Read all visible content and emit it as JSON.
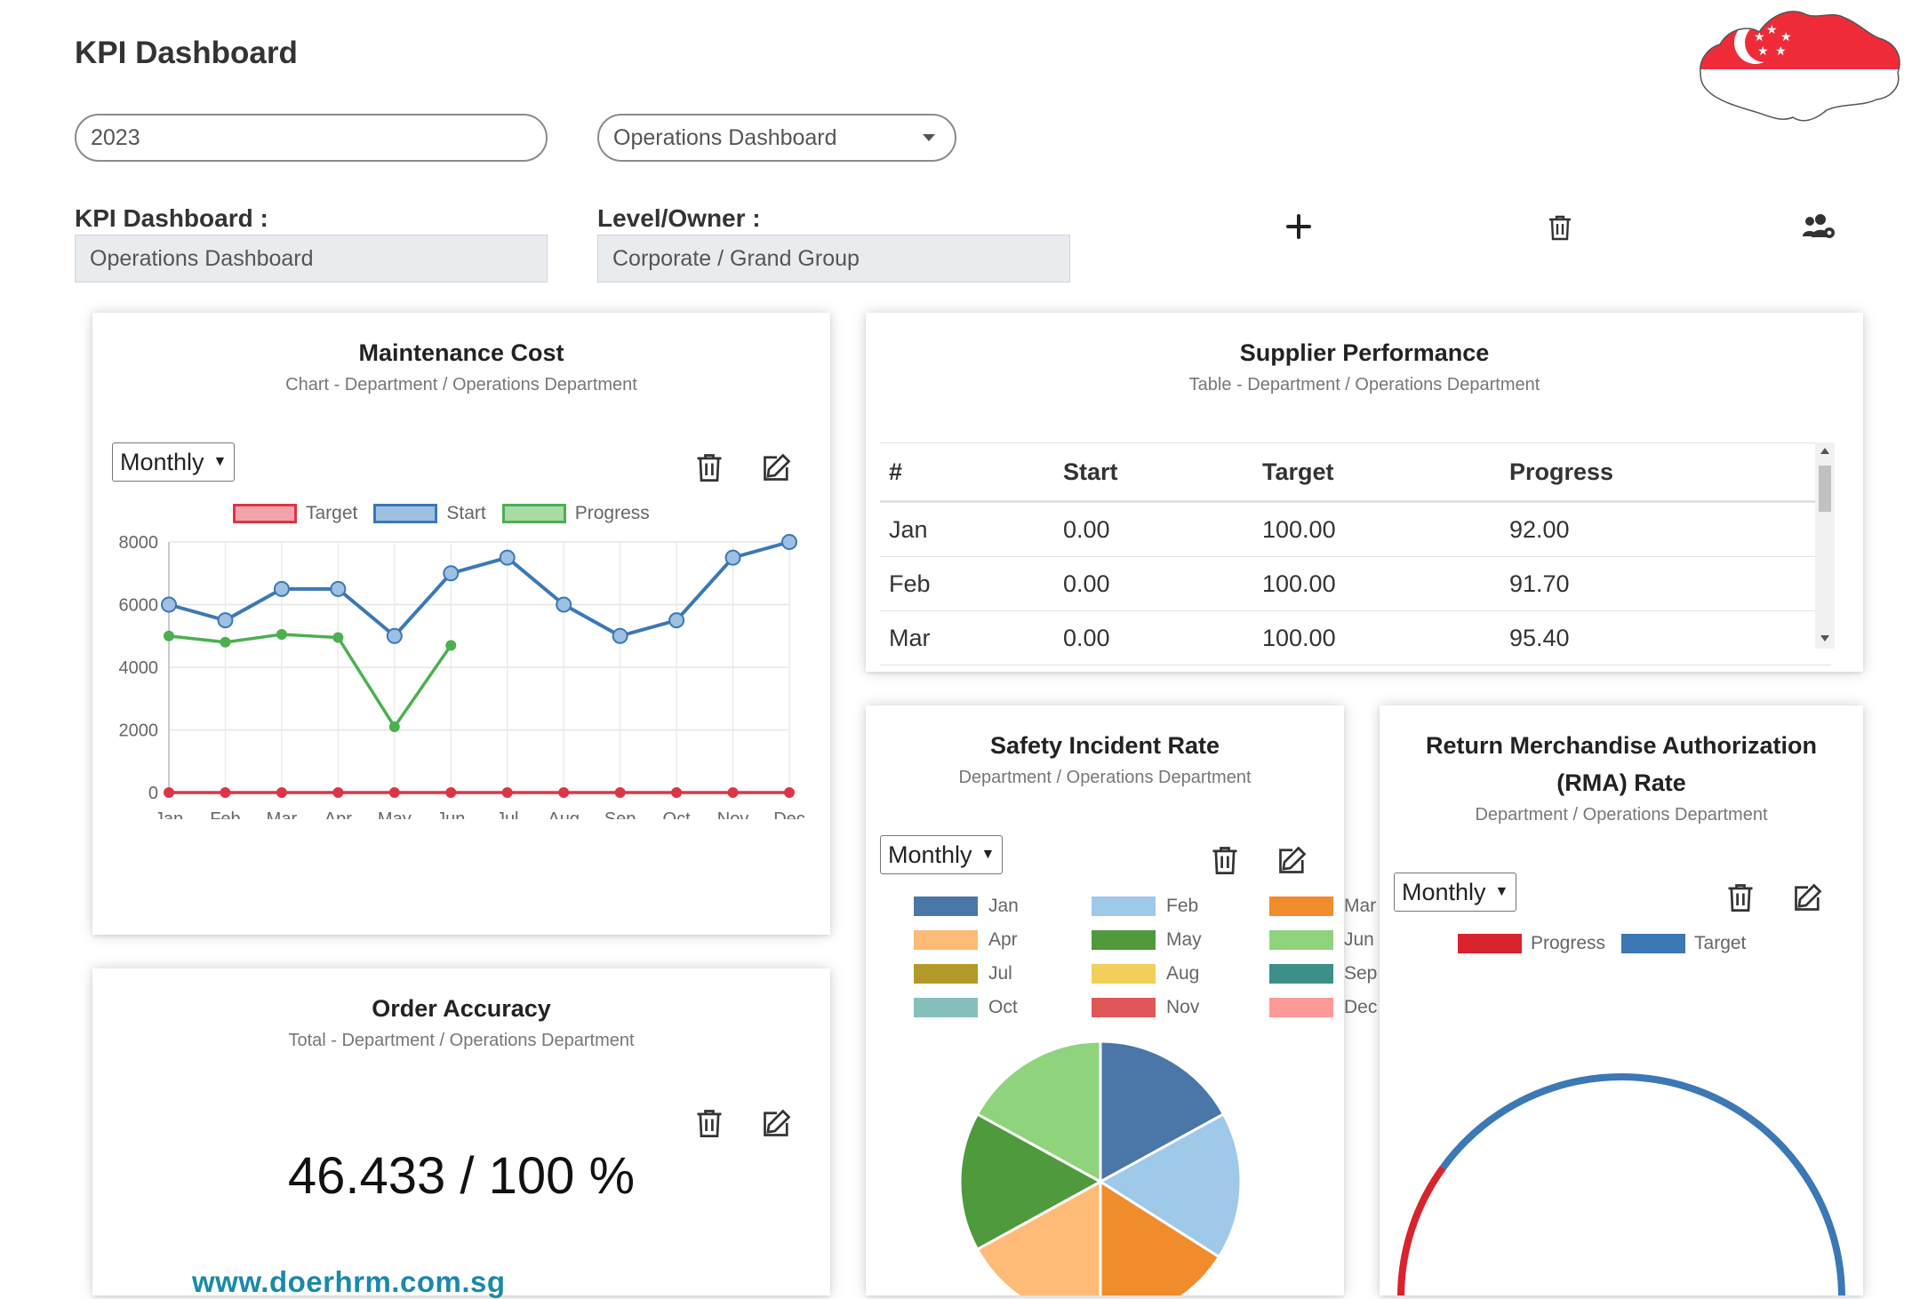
{
  "header": {
    "title": "KPI Dashboard"
  },
  "filters": {
    "year": "2023",
    "dashboard_select": "Operations Dashboard"
  },
  "info": {
    "dashboard_label": "KPI Dashboard :",
    "dashboard_value": "Operations Dashboard",
    "owner_label": "Level/Owner :",
    "owner_value": "Corporate / Grand Group"
  },
  "toolbar": {
    "add_icon": "plus-icon",
    "delete_icon": "trash-icon",
    "users_icon": "users-gear-icon"
  },
  "maintenance": {
    "title": "Maintenance Cost",
    "subtitle": "Chart - Department / Operations Department",
    "period": "Monthly",
    "chart_data": {
      "type": "line",
      "x": [
        "Jan",
        "Feb",
        "Mar",
        "Apr",
        "May",
        "Jun",
        "Jul",
        "Aug",
        "Sep",
        "Oct",
        "Nov",
        "Dec"
      ],
      "yticks": [
        "8000",
        "6000",
        "4000",
        "2000",
        "0"
      ],
      "ylim": [
        0,
        8000
      ],
      "grid": true,
      "legend_position": "top",
      "series": [
        {
          "name": "Target",
          "color": "#dc3545",
          "values": [
            0,
            0,
            0,
            0,
            0,
            0,
            0,
            0,
            0,
            0,
            0,
            0
          ]
        },
        {
          "name": "Start",
          "color": "#3b78b5",
          "values": [
            6000,
            5500,
            6500,
            6500,
            5000,
            7000,
            7500,
            6000,
            5000,
            5500,
            7500,
            8000
          ]
        },
        {
          "name": "Progress",
          "color": "#4caf50",
          "values": [
            5000,
            4800,
            5050,
            4950,
            2100,
            4700,
            null,
            null,
            null,
            null,
            null,
            null
          ]
        }
      ]
    }
  },
  "supplier": {
    "title": "Supplier Performance",
    "subtitle": "Table - Department / Operations Department",
    "columns": [
      "#",
      "Start",
      "Target",
      "Progress"
    ],
    "rows": [
      [
        "Jan",
        "0.00",
        "100.00",
        "92.00"
      ],
      [
        "Feb",
        "0.00",
        "100.00",
        "91.70"
      ],
      [
        "Mar",
        "0.00",
        "100.00",
        "95.40"
      ]
    ]
  },
  "safety": {
    "title": "Safety Incident Rate",
    "subtitle": "Department / Operations Department",
    "period": "Monthly",
    "chart_data": {
      "type": "pie",
      "legend_position": "top",
      "categories": [
        "Jan",
        "Feb",
        "Mar",
        "Apr",
        "May",
        "Jun",
        "Jul",
        "Aug",
        "Sep",
        "Oct",
        "Nov",
        "Dec"
      ],
      "colors": [
        "#4a76a8",
        "#9fc9e9",
        "#f08c2b",
        "#fdbb77",
        "#4e9a3c",
        "#8fd47c",
        "#b39a28",
        "#f2cf5b",
        "#3d8f8a",
        "#86c0bd",
        "#e15759",
        "#fb9a99"
      ],
      "visible_slices": [
        {
          "name": "Jan",
          "color": "#4a76a8",
          "value": 17
        },
        {
          "name": "Feb",
          "color": "#9fc9e9",
          "value": 17
        },
        {
          "name": "Mar",
          "color": "#f08c2b",
          "value": 16
        },
        {
          "name": "Apr",
          "color": "#fdbb77",
          "value": 17
        },
        {
          "name": "May",
          "color": "#4e9a3c",
          "value": 16
        },
        {
          "name": "Jun",
          "color": "#8fd47c",
          "value": 17
        }
      ]
    }
  },
  "rma": {
    "title_line1": "Return Merchandise Authorization",
    "title_line2": "(RMA) Rate",
    "subtitle": "Department / Operations Department",
    "period": "Monthly",
    "chart_data": {
      "type": "gauge",
      "legend_position": "top",
      "series": [
        {
          "name": "Progress",
          "color": "#d9232d",
          "value": 20
        },
        {
          "name": "Target",
          "color": "#3b78b5",
          "value": 80
        }
      ]
    }
  },
  "order": {
    "title": "Order Accuracy",
    "subtitle": "Total - Department / Operations Department",
    "value_text": "46.433 / 100 %"
  },
  "footer": {
    "url": "www.doerhrm.com.sg"
  },
  "brand": {
    "flag_map_icon": "singapore-flag-map-icon",
    "red": "#ef2b3a"
  }
}
